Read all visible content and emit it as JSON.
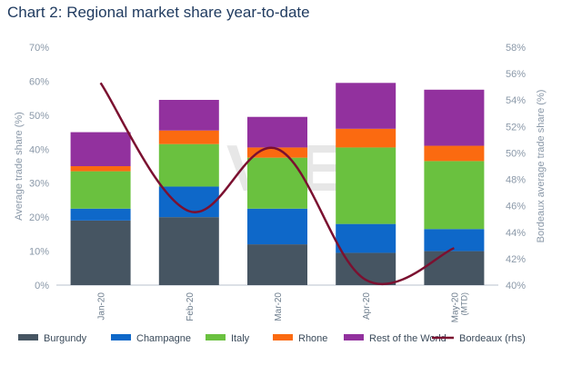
{
  "chart_data": {
    "type": "bar",
    "stacked": true,
    "title": "Chart 2: Regional market share year-to-date",
    "watermark": "LIV-EX",
    "categories": [
      {
        "line1": "Jan-20",
        "line2": ""
      },
      {
        "line1": "Feb-20",
        "line2": ""
      },
      {
        "line1": "Mar-20",
        "line2": ""
      },
      {
        "line1": "Apr-20",
        "line2": ""
      },
      {
        "line1": "May-20",
        "line2": "(MTD)"
      }
    ],
    "ylabel": "Average trade share (%)",
    "y2label": "Bordeaux average trade share (%)",
    "ylim": [
      0,
      70
    ],
    "y2lim": [
      40,
      58
    ],
    "yticks": [
      "0%",
      "10%",
      "20%",
      "30%",
      "40%",
      "50%",
      "60%",
      "70%"
    ],
    "y2ticks": [
      "40%",
      "42%",
      "44%",
      "46%",
      "48%",
      "50%",
      "52%",
      "54%",
      "56%",
      "58%"
    ],
    "series": [
      {
        "name": "Burgundy",
        "color": "#465562",
        "values": [
          19,
          20,
          12,
          9.5,
          10
        ]
      },
      {
        "name": "Champagne",
        "color": "#0e68c9",
        "values": [
          3.5,
          9,
          10.5,
          8.5,
          6.5
        ]
      },
      {
        "name": "Italy",
        "color": "#6ac13f",
        "values": [
          11,
          12.5,
          15,
          22.5,
          20
        ]
      },
      {
        "name": "Rhone",
        "color": "#fb6a10",
        "values": [
          1.5,
          4,
          3,
          5.5,
          4.5
        ]
      },
      {
        "name": "Rest of the World",
        "color": "#92319e",
        "values": [
          10,
          9,
          9,
          13.5,
          16.5
        ]
      }
    ],
    "line_series": {
      "name": "Bordeaux (rhs)",
      "color": "#7b1030",
      "axis": "right",
      "values": [
        55.3,
        45.6,
        50.3,
        40.4,
        42.8
      ]
    },
    "legend_position": "bottom",
    "grid": false
  }
}
